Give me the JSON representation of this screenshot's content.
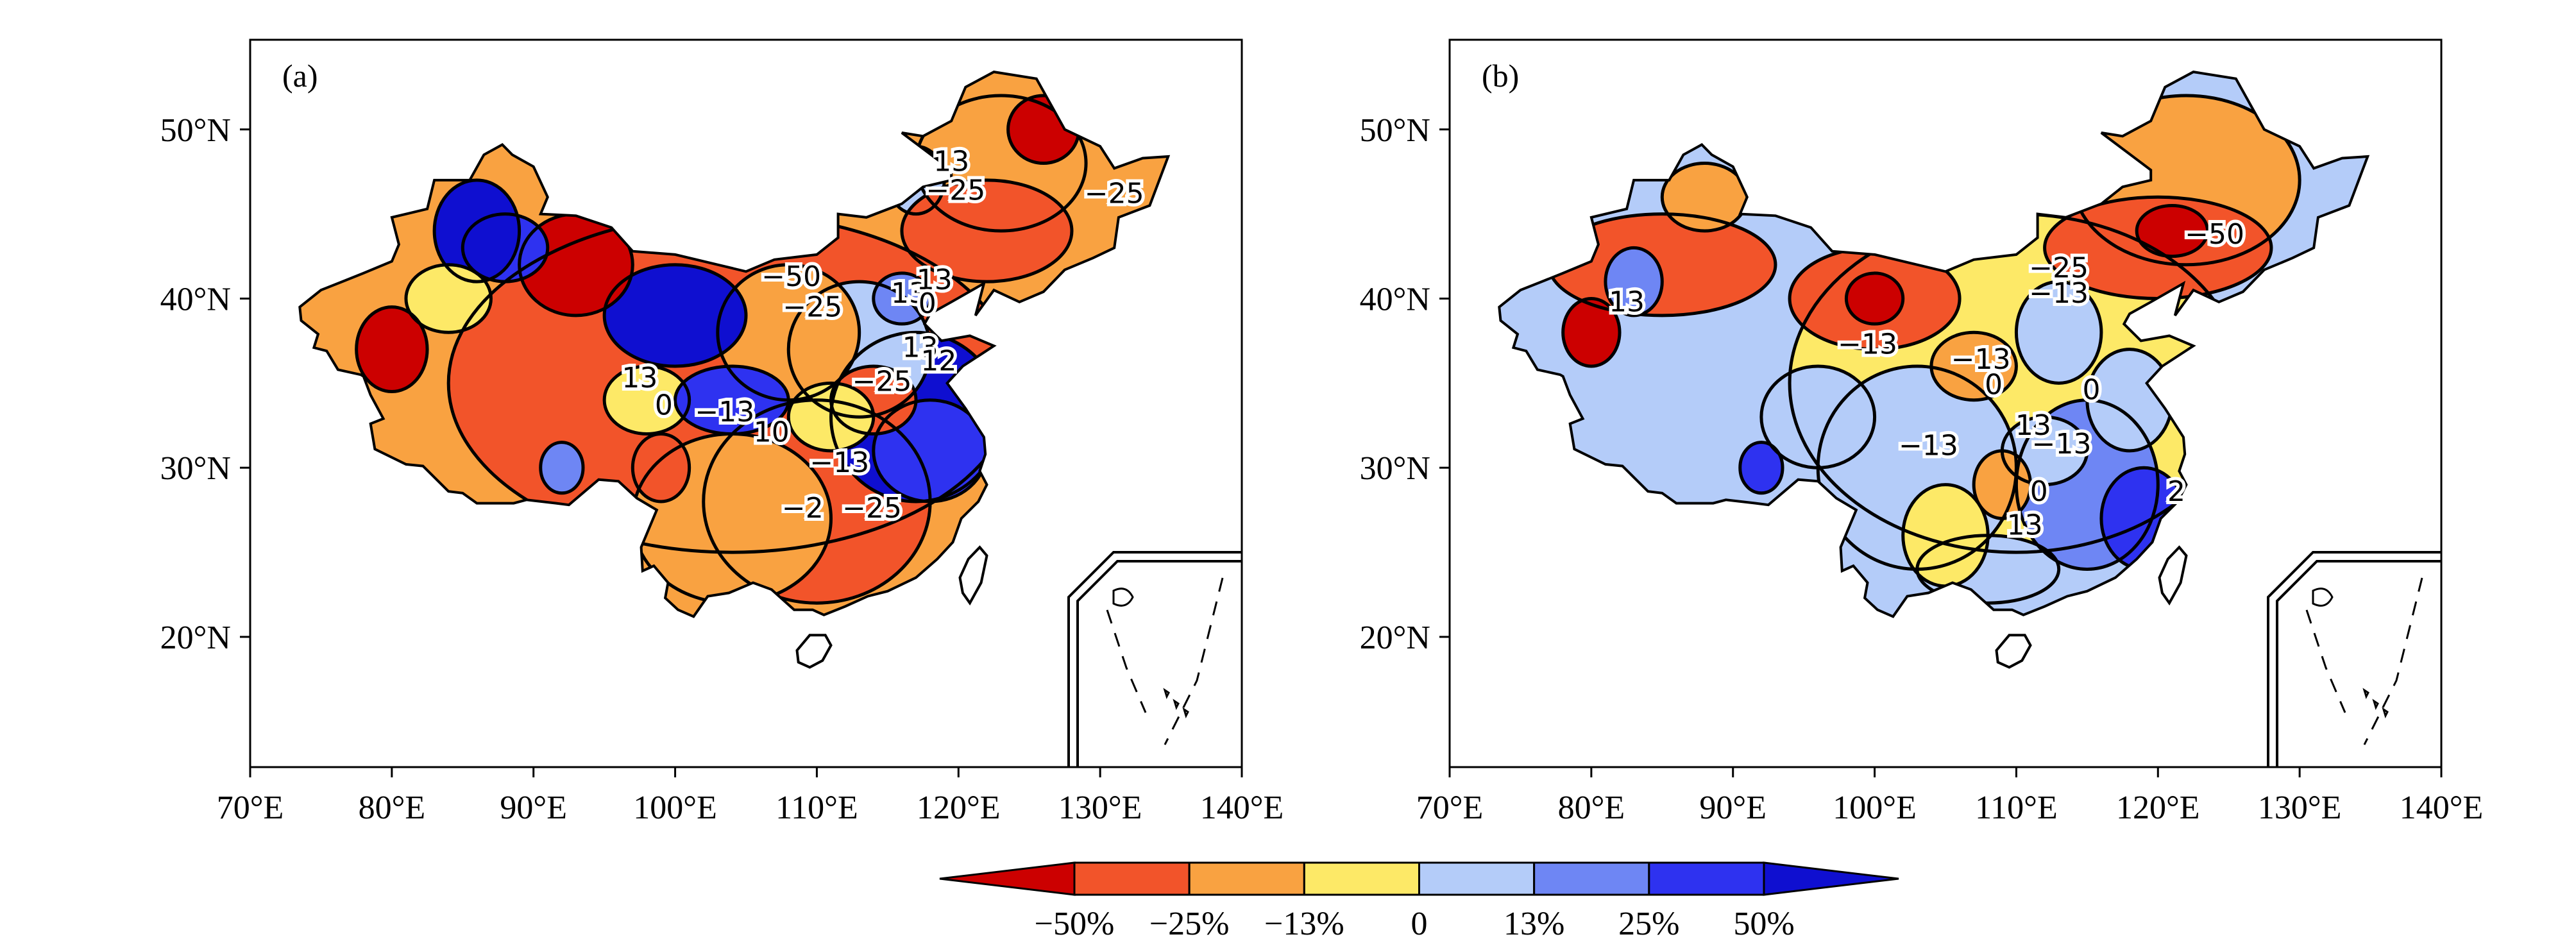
{
  "figure": {
    "panels": [
      {
        "id": "a",
        "label": "(a)",
        "x_ticks": [
          "70°E",
          "80°E",
          "90°E",
          "100°E",
          "110°E",
          "120°E",
          "130°E",
          "140°E"
        ],
        "y_ticks": [
          "20°N",
          "30°N",
          "40°N",
          "50°N"
        ],
        "contour_labels": [
          {
            "text": "13",
            "lon": 119.5,
            "lat": 48.0
          },
          {
            "text": "−25",
            "lon": 119.8,
            "lat": 46.3
          },
          {
            "text": "−25",
            "lon": 131.0,
            "lat": 46.1
          },
          {
            "text": "−50",
            "lon": 108.2,
            "lat": 41.2
          },
          {
            "text": "−25",
            "lon": 109.7,
            "lat": 39.4
          },
          {
            "text": "13",
            "lon": 116.5,
            "lat": 40.2
          },
          {
            "text": "13",
            "lon": 118.3,
            "lat": 41.0
          },
          {
            "text": "0",
            "lon": 117.8,
            "lat": 39.6
          },
          {
            "text": "13",
            "lon": 117.3,
            "lat": 37.0
          },
          {
            "text": "12",
            "lon": 118.6,
            "lat": 36.2
          },
          {
            "text": "−25",
            "lon": 114.6,
            "lat": 35.0
          },
          {
            "text": "13",
            "lon": 97.5,
            "lat": 35.2
          },
          {
            "text": "0",
            "lon": 99.2,
            "lat": 33.6
          },
          {
            "text": "−13",
            "lon": 103.5,
            "lat": 33.2
          },
          {
            "text": "10",
            "lon": 106.8,
            "lat": 32.0
          },
          {
            "text": "−13",
            "lon": 111.6,
            "lat": 30.2
          },
          {
            "text": "−2",
            "lon": 109.0,
            "lat": 27.5
          },
          {
            "text": "−25",
            "lon": 113.9,
            "lat": 27.5
          }
        ]
      },
      {
        "id": "b",
        "label": "(b)",
        "x_ticks": [
          "70°E",
          "80°E",
          "90°E",
          "100°E",
          "110°E",
          "120°E",
          "130°E",
          "140°E"
        ],
        "y_ticks": [
          "20°N",
          "30°N",
          "40°N",
          "50°N"
        ],
        "contour_labels": [
          {
            "text": "−50",
            "lon": 124.0,
            "lat": 43.7
          },
          {
            "text": "−25",
            "lon": 113.0,
            "lat": 41.7
          },
          {
            "text": "−13",
            "lon": 113.0,
            "lat": 40.2
          },
          {
            "text": "13",
            "lon": 82.5,
            "lat": 39.7
          },
          {
            "text": "−13",
            "lon": 99.5,
            "lat": 37.2
          },
          {
            "text": "−13",
            "lon": 107.5,
            "lat": 36.3
          },
          {
            "text": "0",
            "lon": 108.4,
            "lat": 34.8
          },
          {
            "text": "0",
            "lon": 115.3,
            "lat": 34.5
          },
          {
            "text": "13",
            "lon": 111.2,
            "lat": 32.4
          },
          {
            "text": "−13",
            "lon": 103.8,
            "lat": 31.2
          },
          {
            "text": "−13",
            "lon": 113.2,
            "lat": 31.3
          },
          {
            "text": "0",
            "lon": 111.6,
            "lat": 28.5
          },
          {
            "text": "13",
            "lon": 110.6,
            "lat": 26.5
          },
          {
            "text": "2",
            "lon": 121.3,
            "lat": 28.5
          }
        ]
      }
    ],
    "colorbar": {
      "tick_labels": [
        "−50%",
        "−25%",
        "−13%",
        "0",
        "13%",
        "25%",
        "50%"
      ],
      "colors": [
        "#cc0000",
        "#f2542a",
        "#f9a241",
        "#fde967",
        "#b4ccf9",
        "#6e86f4",
        "#2e32f0",
        "#0f0fd0"
      ]
    },
    "colors": {
      "deep_red": "#cc0000",
      "red_orange": "#f2542a",
      "orange": "#f9a241",
      "yellow": "#fde967",
      "light_blue": "#b4ccf9",
      "mid_blue": "#6e86f4",
      "blue": "#2e32f0",
      "deep_blue": "#0f0fd0"
    }
  }
}
